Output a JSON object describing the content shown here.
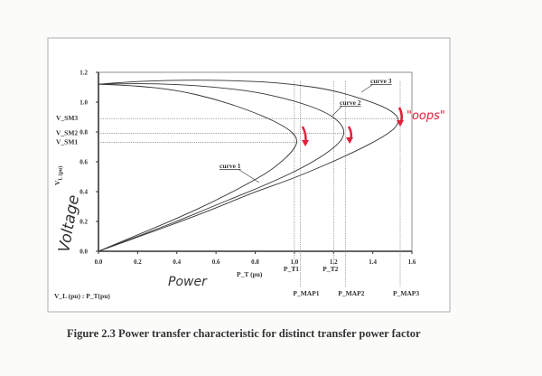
{
  "chart_data": {
    "type": "line",
    "xlim": [
      0,
      1.6
    ],
    "ylim": [
      0,
      1.2
    ],
    "x_ticks": [
      "0.0",
      "0.2",
      "0.4",
      "0.6",
      "0.8",
      "1.0",
      "1.2",
      "1.4",
      "1.6"
    ],
    "y_ticks": [
      "0.0",
      "0.2",
      "0.4",
      "0.6",
      "0.8",
      "1.0",
      "1.2"
    ],
    "xlabel": "P_T (pu)",
    "ylabel": "V_L (pu)",
    "grid": false,
    "series": [
      {
        "name": "curve 1",
        "points": [
          [
            0,
            1.12
          ],
          [
            0.2,
            1.11
          ],
          [
            0.4,
            1.08
          ],
          [
            0.6,
            1.02
          ],
          [
            0.8,
            0.93
          ],
          [
            0.95,
            0.84
          ],
          [
            1.02,
            0.76
          ],
          [
            1.0,
            0.68
          ],
          [
            0.9,
            0.56
          ],
          [
            0.8,
            0.48
          ],
          [
            0.6,
            0.34
          ],
          [
            0.4,
            0.22
          ],
          [
            0.2,
            0.11
          ],
          [
            0,
            0
          ]
        ]
      },
      {
        "name": "curve 2",
        "points": [
          [
            0,
            1.12
          ],
          [
            0.2,
            1.125
          ],
          [
            0.4,
            1.12
          ],
          [
            0.6,
            1.1
          ],
          [
            0.8,
            1.07
          ],
          [
            1.0,
            1.01
          ],
          [
            1.15,
            0.94
          ],
          [
            1.23,
            0.87
          ],
          [
            1.26,
            0.8
          ],
          [
            1.23,
            0.72
          ],
          [
            1.1,
            0.6
          ],
          [
            0.9,
            0.47
          ],
          [
            0.6,
            0.31
          ],
          [
            0.4,
            0.2
          ],
          [
            0.2,
            0.1
          ],
          [
            0,
            0
          ]
        ]
      },
      {
        "name": "curve 3",
        "points": [
          [
            0,
            1.12
          ],
          [
            0.2,
            1.14
          ],
          [
            0.5,
            1.15
          ],
          [
            0.8,
            1.14
          ],
          [
            1.0,
            1.12
          ],
          [
            1.2,
            1.08
          ],
          [
            1.4,
            1.0
          ],
          [
            1.5,
            0.94
          ],
          [
            1.54,
            0.88
          ],
          [
            1.5,
            0.8
          ],
          [
            1.3,
            0.66
          ],
          [
            1.0,
            0.49
          ],
          [
            0.8,
            0.4
          ],
          [
            0.6,
            0.29
          ],
          [
            0.4,
            0.19
          ],
          [
            0.2,
            0.095
          ],
          [
            0,
            0
          ]
        ]
      }
    ],
    "reference_lines": {
      "horizontal": [
        {
          "label": "V_SM3",
          "value": 0.89,
          "to_x": 1.54
        },
        {
          "label": "V_SM2",
          "value": 0.79,
          "to_x": 1.26
        },
        {
          "label": "V_SM1",
          "value": 0.73,
          "to_x": 1.02
        }
      ],
      "vertical": [
        {
          "label": "P_T1",
          "value": 1.0
        },
        {
          "label": "P_T2",
          "value": 1.2
        },
        {
          "label": "P_MAP1",
          "value": 1.03
        },
        {
          "label": "P_MAP2",
          "value": 1.26
        },
        {
          "label": "P_MAP3",
          "value": 1.54
        }
      ]
    },
    "annotations": {
      "legend_note": "V_L (pu)   : P_T(pu)",
      "handwritten_y": "Voltage",
      "handwritten_x": "Power",
      "handwritten_note": "\"oops\"",
      "note_color": "#e0203a"
    }
  },
  "caption": "Figure 2.3   Power transfer characteristic for distinct transfer power factor"
}
